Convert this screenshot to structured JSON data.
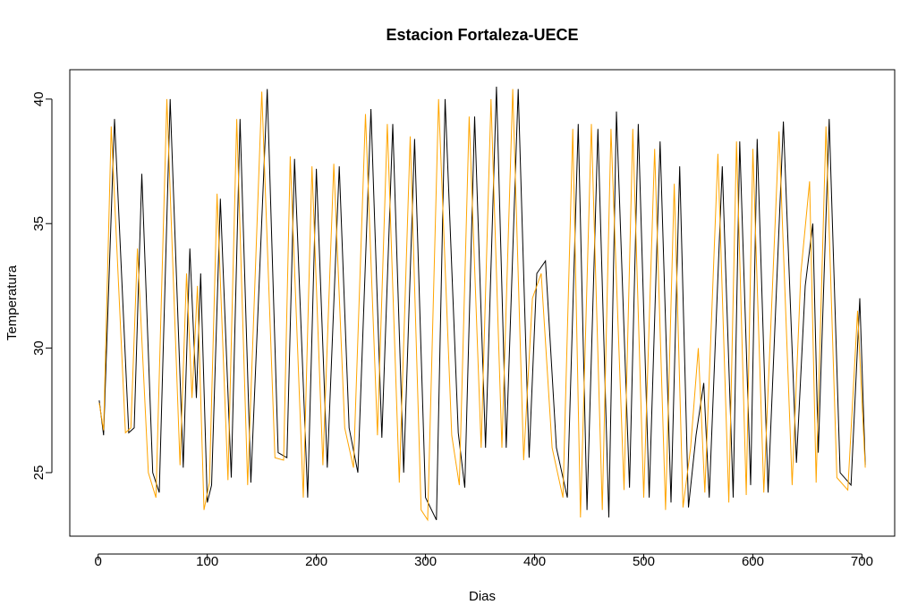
{
  "chart_data": {
    "type": "line",
    "title": "Estacion Fortaleza-UECE",
    "x_label": "Dias",
    "y_label": "Temperatura",
    "xlim": [
      -26,
      730
    ],
    "ylim": [
      22.45,
      41.18
    ],
    "xticks": [
      0,
      100,
      200,
      300,
      400,
      500,
      600,
      700
    ],
    "yticks": [
      25,
      30,
      35,
      40
    ],
    "series": [
      {
        "color": "#000000",
        "x": [
          1,
          5,
          15,
          28,
          33,
          40,
          50,
          56,
          66,
          78,
          84,
          90,
          94,
          100,
          104,
          112,
          122,
          130,
          140,
          155,
          165,
          173,
          180,
          192,
          200,
          210,
          221,
          230,
          238,
          250,
          260,
          270,
          280,
          290,
          300,
          310,
          318,
          330,
          336,
          345,
          355,
          365,
          374,
          385,
          395,
          402,
          410,
          420,
          430,
          440,
          448,
          458,
          468,
          475,
          487,
          495,
          505,
          515,
          525,
          533,
          541,
          548,
          555,
          560,
          572,
          582,
          588,
          598,
          604,
          614,
          628,
          640,
          648,
          655,
          660,
          670,
          680,
          690,
          698,
          703
        ],
        "values": [
          27.9,
          26.5,
          39.2,
          26.6,
          26.8,
          37,
          25,
          24.2,
          40,
          25.2,
          34,
          28,
          33,
          23.8,
          24.5,
          36,
          24.8,
          39.2,
          24.6,
          40.4,
          25.8,
          25.6,
          37.6,
          24,
          37.2,
          25.2,
          37.3,
          26.8,
          25,
          39.6,
          26.4,
          39,
          25,
          38.4,
          24,
          23.1,
          40,
          26.6,
          24.4,
          39.3,
          26,
          40.5,
          26,
          40.4,
          25.6,
          33,
          33.5,
          26,
          24,
          39,
          23.5,
          38.8,
          23.2,
          39.5,
          24.4,
          39,
          24,
          38.3,
          23.8,
          37.3,
          23.6,
          26.5,
          28.6,
          24,
          37.3,
          24,
          38.3,
          24.5,
          38.4,
          24.2,
          39.1,
          25.4,
          32.5,
          35,
          25.8,
          39.2,
          25,
          24.5,
          32,
          25.3
        ]
      },
      {
        "color": "#FFA500",
        "x": [
          1,
          5,
          12,
          25,
          30,
          36,
          46,
          53,
          63,
          75,
          81,
          86,
          91,
          97,
          102,
          109,
          119,
          127,
          137,
          150,
          162,
          170,
          176,
          188,
          196,
          206,
          216,
          226,
          234,
          245,
          256,
          265,
          276,
          286,
          296,
          302,
          312,
          324,
          331,
          340,
          351,
          360,
          370,
          380,
          390,
          398,
          406,
          416,
          426,
          435,
          442,
          452,
          462,
          470,
          482,
          490,
          500,
          510,
          520,
          528,
          536,
          543,
          550,
          556,
          568,
          578,
          585,
          594,
          600,
          610,
          624,
          636,
          644,
          652,
          658,
          667,
          677,
          687,
          696,
          703
        ],
        "values": [
          27.8,
          26.7,
          38.9,
          26.6,
          26.8,
          34,
          25,
          24,
          40,
          25.3,
          33,
          28,
          32.5,
          23.5,
          24.6,
          36.2,
          24.7,
          39.2,
          24.5,
          40.3,
          25.6,
          25.5,
          37.7,
          24,
          37.3,
          25.3,
          37.4,
          26.8,
          25.2,
          39.4,
          26.5,
          39,
          24.6,
          38.5,
          23.5,
          23.1,
          40,
          26.5,
          24.5,
          39.3,
          26,
          40,
          26,
          40.4,
          25.5,
          32,
          33,
          26,
          24,
          38.8,
          23.2,
          39,
          23.5,
          38.8,
          24.3,
          38.8,
          24,
          38,
          23.5,
          36.6,
          23.6,
          26,
          30,
          24.2,
          37.8,
          23.8,
          38.3,
          24.1,
          38,
          24.2,
          38.7,
          24.5,
          33,
          36.7,
          24.6,
          38.9,
          24.8,
          24.3,
          31.5,
          25.2
        ]
      }
    ]
  }
}
